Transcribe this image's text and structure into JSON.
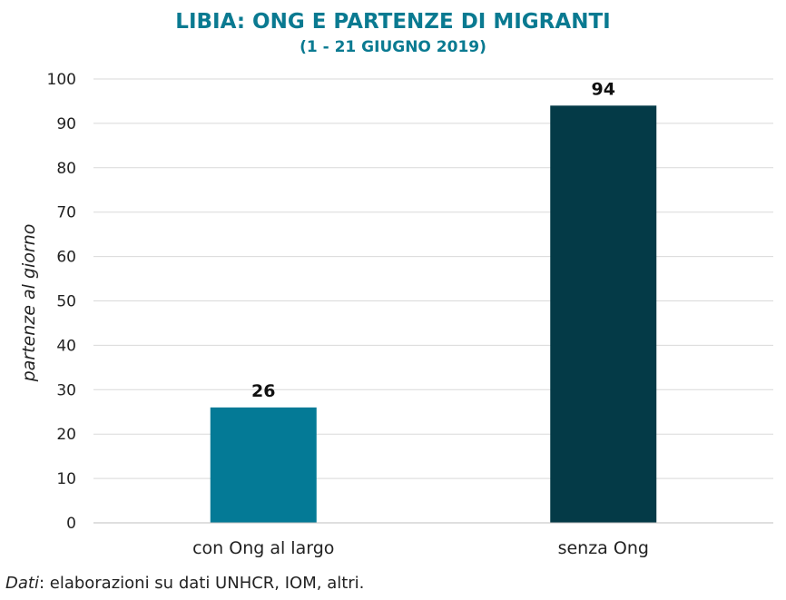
{
  "colors": {
    "title": "#0a7a91",
    "grid": "#d9d9d9",
    "axis": "#bfbfbf"
  },
  "chart_data": {
    "type": "bar",
    "title": "LIBIA: ONG E PARTENZE DI MIGRANTI",
    "subtitle": "(1 - 21 GIUGNO 2019)",
    "xlabel": "",
    "ylabel": "partenze al giorno",
    "ylim": [
      0,
      100
    ],
    "yticks": [
      0,
      10,
      20,
      30,
      40,
      50,
      60,
      70,
      80,
      90,
      100
    ],
    "categories": [
      "con Ong al largo",
      "senza Ong"
    ],
    "values": [
      26,
      94
    ],
    "bar_colors": [
      "#047a96",
      "#043a47"
    ],
    "data_labels": [
      "26",
      "94"
    ],
    "grid": true,
    "legend": "none"
  },
  "source": {
    "lead": "Dati",
    "text": ": elaborazioni su dati UNHCR, IOM, altri."
  }
}
